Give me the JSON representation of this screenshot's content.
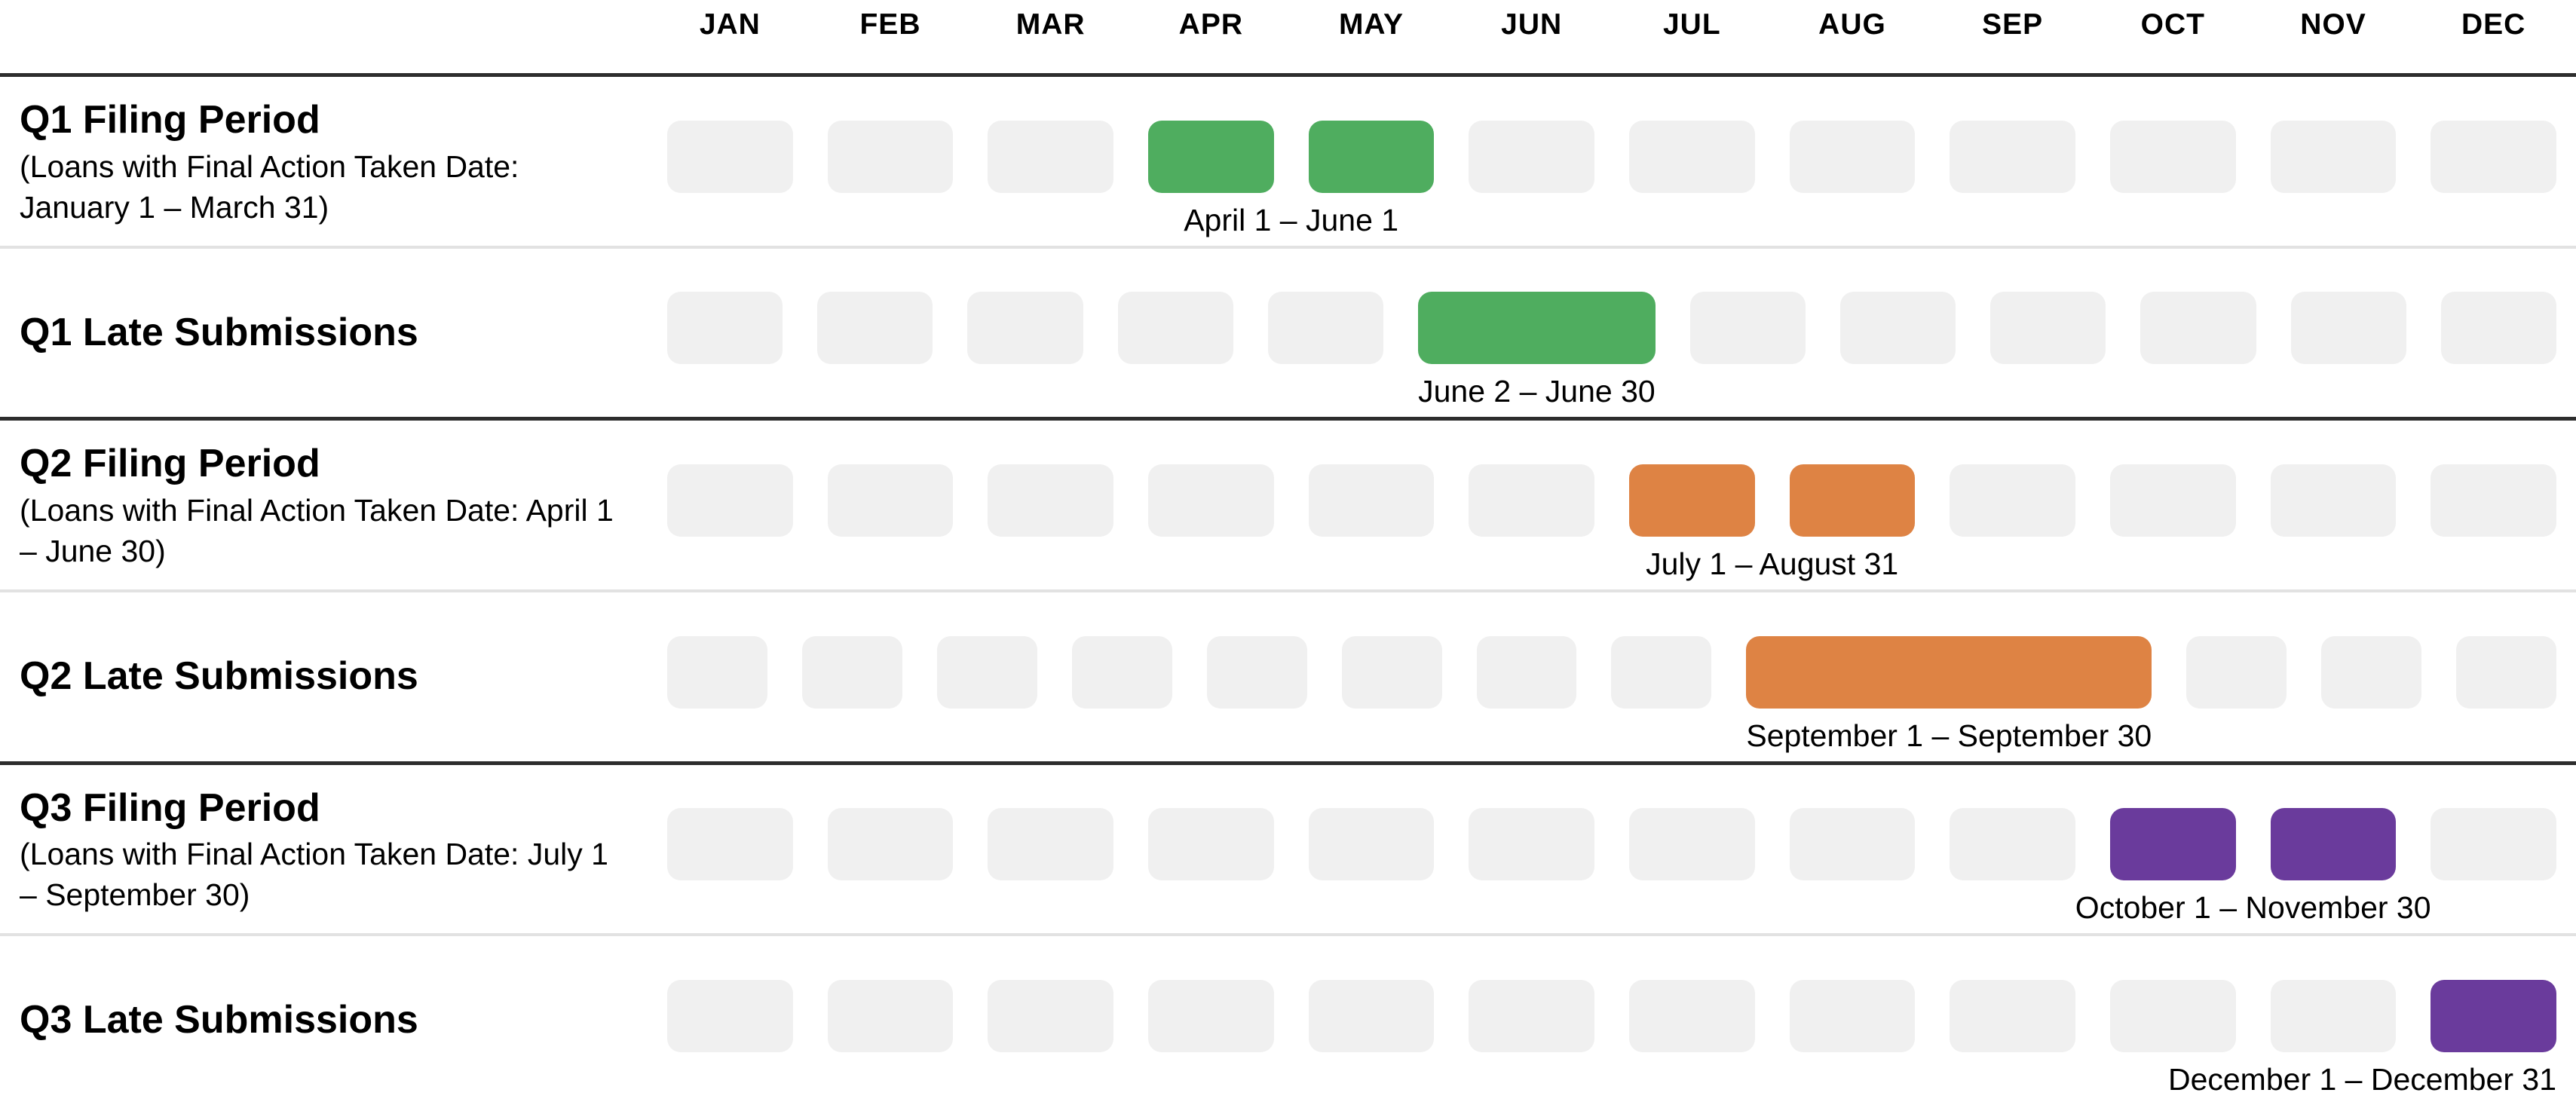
{
  "months": [
    "JAN",
    "FEB",
    "MAR",
    "APR",
    "MAY",
    "JUN",
    "JUL",
    "AUG",
    "SEP",
    "OCT",
    "NOV",
    "DEC"
  ],
  "colors": {
    "green": "#4fad5f",
    "orange": "#de8344",
    "purple": "#6a3b9c",
    "pill_gray": "#f0f0f0",
    "divider_dark": "#2d2d2d",
    "divider_light": "#e2e2e2"
  },
  "rows": [
    {
      "title": "Q1 Filing Period",
      "subtitle": "(Loans with Final Action Taken Date: January 1 – March 31)",
      "active_months": [
        "APR",
        "MAY"
      ],
      "bar_color": "#4fad5f",
      "caption": {
        "text": "April 1 – June 1",
        "under_months": [
          "APR",
          "MAY"
        ],
        "align": "center"
      },
      "divider_below": "light"
    },
    {
      "title": "Q1 Late Submissions",
      "subtitle": "",
      "active_months": [
        "JUN"
      ],
      "bar_color": "#4fad5f",
      "caption": {
        "text": "June 2 – June 30",
        "under_months": [
          "JUN"
        ],
        "align": "center"
      },
      "divider_below": "dark"
    },
    {
      "title": "Q2 Filing Period",
      "subtitle": "(Loans with Final Action Taken Date: April 1 – June 30)",
      "active_months": [
        "JUL",
        "AUG"
      ],
      "bar_color": "#de8344",
      "caption": {
        "text": "July 1 – August 31",
        "under_months": [
          "JUL",
          "AUG"
        ],
        "align": "center"
      },
      "divider_below": "light"
    },
    {
      "title": "Q2 Late Submissions",
      "subtitle": "",
      "active_months": [
        "SEP"
      ],
      "bar_color": "#de8344",
      "caption": {
        "text": "September 1 – September 30",
        "under_months": [
          "SEP"
        ],
        "align": "center"
      },
      "divider_below": "dark"
    },
    {
      "title": "Q3 Filing Period",
      "subtitle": "(Loans with Final Action Taken Date: July 1 – September 30)",
      "active_months": [
        "OCT",
        "NOV"
      ],
      "bar_color": "#6a3b9c",
      "caption": {
        "text": "October 1 – November 30",
        "under_months": [
          "OCT",
          "NOV"
        ],
        "align": "center"
      },
      "divider_below": "light"
    },
    {
      "title": "Q3 Late Submissions",
      "subtitle": "",
      "active_months": [
        "DEC"
      ],
      "bar_color": "#6a3b9c",
      "caption": {
        "text": "December 1 – December 31",
        "under_months": [
          "OCT",
          "NOV",
          "DEC"
        ],
        "align": "right"
      },
      "divider_below": "none"
    }
  ],
  "chart_data": {
    "type": "bar",
    "subtype": "gantt-timeline",
    "categories": [
      "JAN",
      "FEB",
      "MAR",
      "APR",
      "MAY",
      "JUN",
      "JUL",
      "AUG",
      "SEP",
      "OCT",
      "NOV",
      "DEC"
    ],
    "grid": false,
    "legend": false,
    "rows": [
      {
        "label": "Q1 Filing Period",
        "sublabel": "(Loans with Final Action Taken Date: January 1 – March 31)",
        "start_month": "APR",
        "end_month": "MAY",
        "date_range": "April 1 – June 1",
        "color": "#4fad5f"
      },
      {
        "label": "Q1 Late Submissions",
        "sublabel": "",
        "start_month": "JUN",
        "end_month": "JUN",
        "date_range": "June 2 – June 30",
        "color": "#4fad5f"
      },
      {
        "label": "Q2 Filing Period",
        "sublabel": "(Loans with Final Action Taken Date: April 1 – June 30)",
        "start_month": "JUL",
        "end_month": "AUG",
        "date_range": "July 1 – August 31",
        "color": "#de8344"
      },
      {
        "label": "Q2 Late Submissions",
        "sublabel": "",
        "start_month": "SEP",
        "end_month": "SEP",
        "date_range": "September 1 – September 30",
        "color": "#de8344"
      },
      {
        "label": "Q3 Filing Period",
        "sublabel": "(Loans with Final Action Taken Date: July 1 – September 30)",
        "start_month": "OCT",
        "end_month": "NOV",
        "date_range": "October 1 – November 30",
        "color": "#6a3b9c"
      },
      {
        "label": "Q3 Late Submissions",
        "sublabel": "",
        "start_month": "DEC",
        "end_month": "DEC",
        "date_range": "December 1 – December 31",
        "color": "#6a3b9c"
      }
    ]
  }
}
